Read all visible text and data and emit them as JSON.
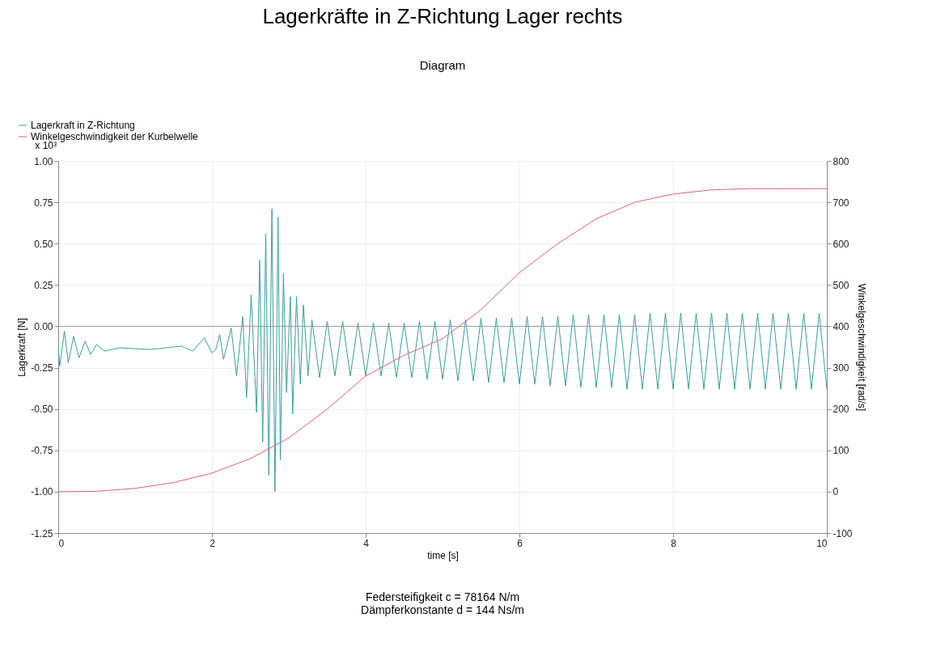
{
  "chart_data": {
    "type": "line",
    "title": "Lagerkräfte in Z-Richtung Lager rechts",
    "subtitle": "Diagram",
    "xlabel": "time [s]",
    "ylabel": "Lagerkraft [N]",
    "y2label": "Winkelgeschwindigkeit [rad/s]",
    "xlim": [
      0,
      10
    ],
    "xticks": [
      0,
      2,
      4,
      6,
      8,
      10
    ],
    "ylim": [
      -1.25,
      1.0
    ],
    "yticks": [
      {
        "value": 1.0,
        "label": "1.00"
      },
      0.75,
      {
        "value": 0.5,
        "label": "0.50"
      },
      0.25,
      {
        "value": 0,
        "label": "0.00"
      },
      -0.25,
      {
        "value": -0.5,
        "label": "-0.50"
      },
      -0.75,
      {
        "value": -1.0,
        "label": "-1.00"
      },
      -1.25
    ],
    "y2lim": [
      -100,
      800
    ],
    "y2ticks": [
      -100,
      0,
      100,
      200,
      300,
      400,
      500,
      600,
      700,
      800
    ],
    "grid": true,
    "legend": "top left",
    "line_style": "solid",
    "marker": "none",
    "ref_lines": [
      {
        "axis": "y",
        "value": 0,
        "color": "#9a9a9a"
      }
    ],
    "annotations": [
      "x 10³",
      "Federsteifigkeit c = 78164 N/m",
      "Dämpferkonstante d = 144 Ns/m"
    ],
    "series": [
      {
        "name": "Lagerkraft in Z-Richtung",
        "color": "#3a9e9c",
        "x": [
          0,
          0.02,
          0.08,
          0.13,
          0.2,
          0.27,
          0.35,
          0.42,
          0.5,
          0.6,
          0.8,
          1.2,
          1.6,
          1.75,
          1.9,
          2.0,
          2.05,
          2.1,
          2.15,
          2.25,
          2.32,
          2.4,
          2.45,
          2.51,
          2.58,
          2.62,
          2.66,
          2.7,
          2.74,
          2.78,
          2.82,
          2.86,
          2.89,
          2.93,
          2.97,
          3.02,
          3.05,
          3.1,
          3.15,
          3.19,
          3.25,
          3.3,
          3.4,
          3.5,
          3.6,
          3.7,
          3.8,
          3.9,
          4.0,
          4.1,
          4.2,
          4.3,
          4.4,
          4.5,
          4.6,
          4.7,
          4.8,
          4.9,
          5.0,
          5.1,
          5.2,
          5.3,
          5.4,
          5.5,
          5.6,
          5.7,
          5.8,
          5.9,
          6.0,
          6.1,
          6.2,
          6.3,
          6.4,
          6.5,
          6.6,
          6.7,
          6.8,
          6.9,
          7.0,
          7.1,
          7.2,
          7.3,
          7.4,
          7.5,
          7.6,
          7.7,
          7.8,
          7.9,
          8.0,
          8.1,
          8.2,
          8.3,
          8.4,
          8.5,
          8.6,
          8.7,
          8.8,
          8.9,
          9.0,
          9.1,
          9.2,
          9.3,
          9.4,
          9.5,
          9.6,
          9.7,
          9.8,
          9.9,
          10.0
        ],
        "values": [
          -0.13,
          -0.24,
          -0.03,
          -0.22,
          -0.06,
          -0.19,
          -0.09,
          -0.17,
          -0.11,
          -0.15,
          -0.13,
          -0.14,
          -0.12,
          -0.15,
          -0.07,
          -0.16,
          -0.14,
          -0.05,
          -0.2,
          -0.01,
          -0.3,
          0.06,
          -0.43,
          0.19,
          -0.52,
          0.4,
          -0.7,
          0.56,
          -0.9,
          0.71,
          -1.0,
          0.66,
          -0.81,
          0.32,
          -0.4,
          0.18,
          -0.53,
          0.18,
          -0.35,
          0.13,
          -0.3,
          0.04,
          -0.31,
          0.03,
          -0.3,
          0.03,
          -0.3,
          0.02,
          -0.3,
          0.02,
          -0.3,
          0.02,
          -0.31,
          0.02,
          -0.31,
          0.03,
          -0.32,
          0.03,
          -0.32,
          0.04,
          -0.33,
          0.04,
          -0.33,
          0.05,
          -0.34,
          0.05,
          -0.34,
          0.05,
          -0.35,
          0.06,
          -0.35,
          0.06,
          -0.36,
          0.06,
          -0.36,
          0.07,
          -0.37,
          0.07,
          -0.37,
          0.07,
          -0.37,
          0.07,
          -0.38,
          0.07,
          -0.38,
          0.08,
          -0.38,
          0.08,
          -0.38,
          0.08,
          -0.38,
          0.08,
          -0.38,
          0.08,
          -0.38,
          0.08,
          -0.38,
          0.08,
          -0.38,
          0.08,
          -0.38,
          0.08,
          -0.38,
          0.08,
          -0.38,
          0.08,
          -0.38,
          0.08,
          -0.38
        ]
      },
      {
        "name": "Winkelgeschwindigkeit der Kurbelwelle",
        "color": "#d9646e",
        "axis": "y2",
        "x": [
          0,
          0.5,
          1,
          1.5,
          2,
          2.5,
          3,
          3.5,
          4,
          4.5,
          5,
          5.5,
          6,
          6.5,
          7,
          7.5,
          8,
          8.5,
          9,
          9.5,
          10
        ],
        "values": [
          0,
          1,
          8,
          22,
          45,
          80,
          130,
          200,
          280,
          330,
          370,
          440,
          530,
          600,
          660,
          700,
          720,
          730,
          733,
          733,
          733
        ]
      }
    ]
  }
}
